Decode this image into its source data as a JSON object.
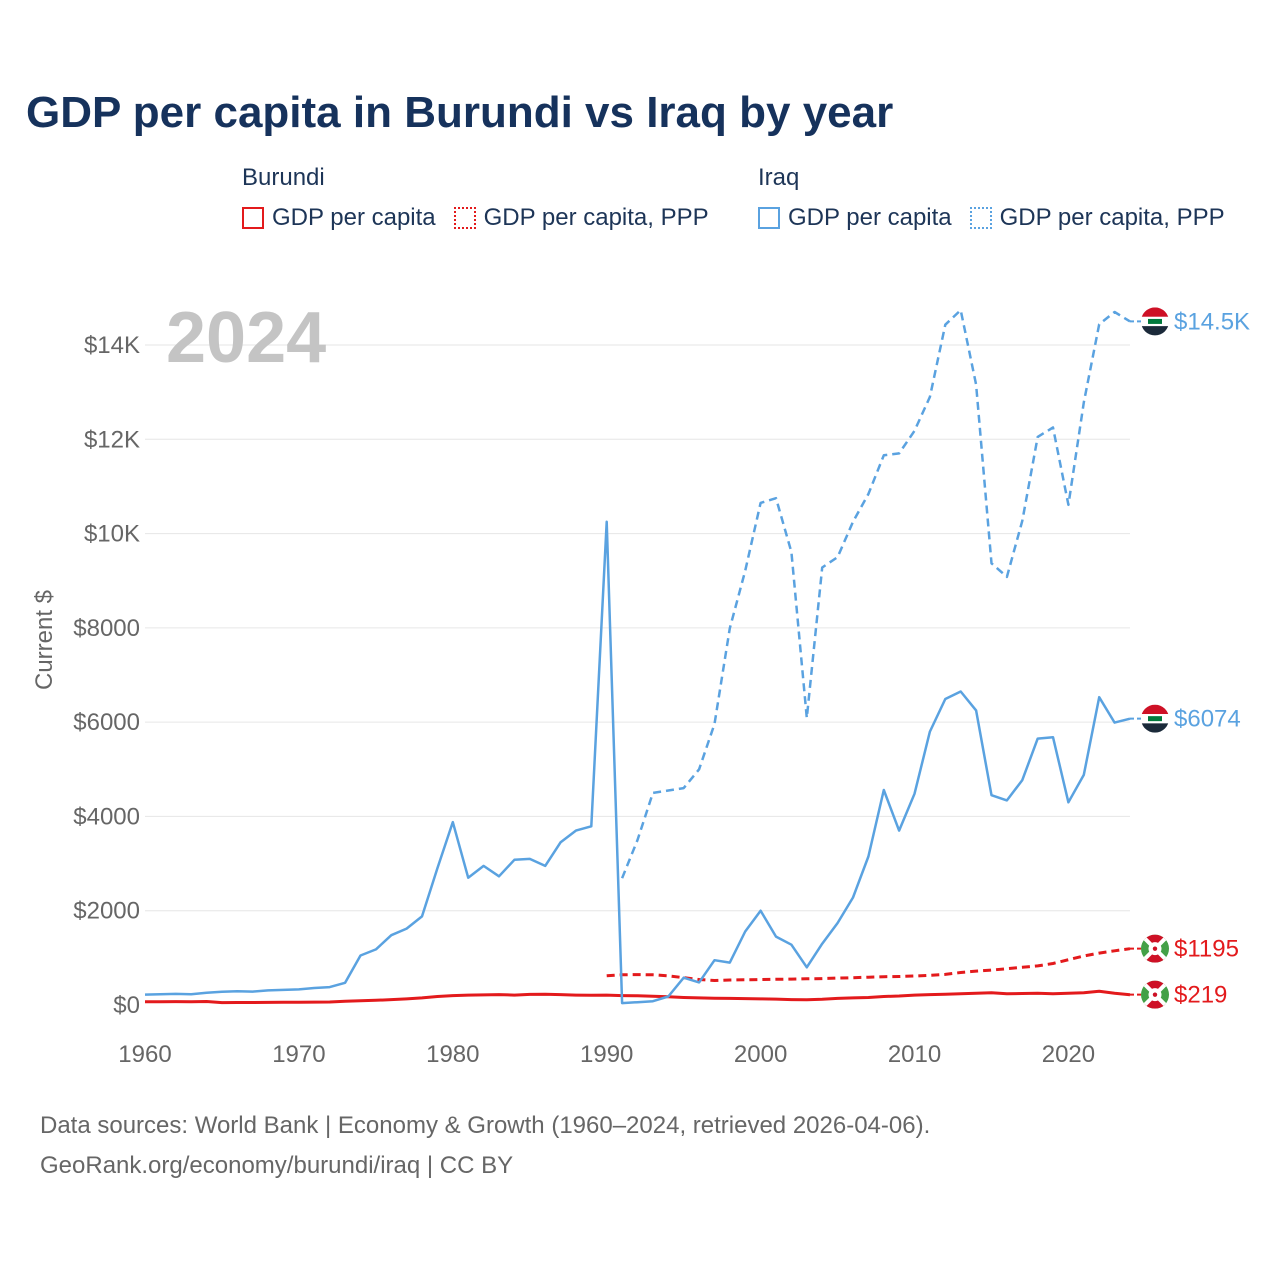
{
  "title": "GDP per capita in Burundi vs Iraq by year",
  "legend": {
    "groups": [
      {
        "name": "Burundi",
        "color": "#e31a1c",
        "items": [
          {
            "label": "GDP per capita",
            "style": "solid"
          },
          {
            "label": "GDP per capita, PPP",
            "style": "dotted"
          }
        ]
      },
      {
        "name": "Iraq",
        "color": "#5aa2e0",
        "items": [
          {
            "label": "GDP per capita",
            "style": "solid"
          },
          {
            "label": "GDP per capita, PPP",
            "style": "dotted"
          }
        ]
      }
    ]
  },
  "year_label": "2024",
  "end_labels": [
    {
      "text": "$14.5K",
      "series": "Iraq GDP per capita, PPP"
    },
    {
      "text": "$6074",
      "series": "Iraq GDP per capita"
    },
    {
      "text": "$1195",
      "series": "Burundi GDP per capita, PPP"
    },
    {
      "text": "$219",
      "series": "Burundi GDP per capita"
    }
  ],
  "chart_data": {
    "type": "line",
    "title": "GDP per capita in Burundi vs Iraq by year",
    "xlabel": "",
    "ylabel": "Current $",
    "xlim": [
      1960,
      2024
    ],
    "ylim": [
      0,
      14000
    ],
    "xticks": [
      1960,
      1970,
      1980,
      1990,
      2000,
      2010,
      2020
    ],
    "yticks": [
      0,
      2000,
      4000,
      6000,
      8000,
      10000,
      12000,
      14000
    ],
    "ytick_labels": [
      "$0",
      "$2000",
      "$4000",
      "$6000",
      "$8000",
      "$10K",
      "$12K",
      "$14K"
    ],
    "grid": true,
    "series": [
      {
        "name": "Burundi GDP per capita",
        "country": "Burundi",
        "color": "#e31a1c",
        "dash": "solid",
        "x": [
          1960,
          1961,
          1962,
          1963,
          1964,
          1965,
          1966,
          1967,
          1968,
          1969,
          1970,
          1971,
          1972,
          1973,
          1974,
          1975,
          1976,
          1977,
          1978,
          1979,
          1980,
          1981,
          1982,
          1983,
          1984,
          1985,
          1986,
          1987,
          1988,
          1989,
          1990,
          1991,
          1992,
          1993,
          1994,
          1995,
          1996,
          1997,
          1998,
          1999,
          2000,
          2001,
          2002,
          2003,
          2004,
          2005,
          2006,
          2007,
          2008,
          2009,
          2010,
          2011,
          2012,
          2013,
          2014,
          2015,
          2016,
          2017,
          2018,
          2019,
          2020,
          2021,
          2022,
          2023,
          2024
        ],
        "values": [
          70,
          71,
          72,
          70,
          75,
          50,
          52,
          54,
          56,
          58,
          60,
          62,
          64,
          80,
          90,
          100,
          115,
          130,
          150,
          180,
          200,
          210,
          215,
          220,
          210,
          225,
          230,
          220,
          210,
          205,
          210,
          200,
          195,
          185,
          175,
          160,
          150,
          145,
          140,
          135,
          130,
          125,
          115,
          110,
          120,
          140,
          150,
          160,
          180,
          190,
          210,
          220,
          230,
          240,
          250,
          260,
          240,
          245,
          250,
          240,
          250,
          260,
          290,
          250,
          219
        ]
      },
      {
        "name": "Burundi GDP per capita, PPP",
        "country": "Burundi",
        "color": "#e31a1c",
        "dash": "dashed",
        "x": [
          1990,
          1991,
          1992,
          1993,
          1994,
          1995,
          1996,
          1997,
          1998,
          1999,
          2000,
          2001,
          2002,
          2003,
          2004,
          2005,
          2006,
          2007,
          2008,
          2009,
          2010,
          2011,
          2012,
          2013,
          2014,
          2015,
          2016,
          2017,
          2018,
          2019,
          2020,
          2021,
          2022,
          2023,
          2024
        ],
        "values": [
          620,
          640,
          645,
          640,
          620,
          580,
          540,
          520,
          530,
          535,
          540,
          545,
          550,
          555,
          560,
          570,
          580,
          590,
          600,
          605,
          615,
          630,
          650,
          690,
          720,
          740,
          770,
          800,
          830,
          880,
          960,
          1040,
          1100,
          1150,
          1195
        ]
      },
      {
        "name": "Iraq GDP per capita",
        "country": "Iraq",
        "color": "#5aa2e0",
        "dash": "solid",
        "x": [
          1960,
          1961,
          1962,
          1963,
          1964,
          1965,
          1966,
          1967,
          1968,
          1969,
          1970,
          1971,
          1972,
          1973,
          1974,
          1975,
          1976,
          1977,
          1978,
          1979,
          1980,
          1981,
          1982,
          1983,
          1984,
          1985,
          1986,
          1987,
          1988,
          1989,
          1990,
          1991,
          1992,
          1993,
          1994,
          1995,
          1996,
          1997,
          1998,
          1999,
          2000,
          2001,
          2002,
          2003,
          2004,
          2005,
          2006,
          2007,
          2008,
          2009,
          2010,
          2011,
          2012,
          2013,
          2014,
          2015,
          2016,
          2017,
          2018,
          2019,
          2020,
          2021,
          2022,
          2023,
          2024
        ],
        "values": [
          220,
          230,
          235,
          230,
          260,
          280,
          290,
          285,
          310,
          320,
          330,
          360,
          380,
          470,
          1050,
          1180,
          1480,
          1620,
          1880,
          2900,
          3880,
          2700,
          2950,
          2730,
          3080,
          3100,
          2950,
          3450,
          3700,
          3790,
          10250,
          40,
          60,
          80,
          180,
          580,
          480,
          950,
          900,
          1560,
          2000,
          1450,
          1280,
          800,
          1300,
          1740,
          2280,
          3150,
          4560,
          3700,
          4480,
          5800,
          6490,
          6650,
          6250,
          4450,
          4340,
          4770,
          5650,
          5680,
          4300,
          4880,
          6530,
          5990,
          6074
        ]
      },
      {
        "name": "Iraq GDP per capita, PPP",
        "country": "Iraq",
        "color": "#5aa2e0",
        "dash": "dashed",
        "x": [
          1991,
          1992,
          1993,
          1994,
          1995,
          1996,
          1997,
          1998,
          1999,
          2000,
          2001,
          2002,
          2003,
          2004,
          2005,
          2006,
          2007,
          2008,
          2009,
          2010,
          2011,
          2012,
          2013,
          2014,
          2015,
          2016,
          2017,
          2018,
          2019,
          2020,
          2021,
          2022,
          2023,
          2024
        ],
        "values": [
          2690,
          3500,
          4500,
          4550,
          4600,
          5000,
          5960,
          7990,
          9210,
          10650,
          10750,
          9610,
          6090,
          9280,
          9500,
          10250,
          10840,
          11660,
          11700,
          12180,
          12900,
          14430,
          14740,
          13160,
          9370,
          9080,
          10270,
          12050,
          12250,
          10610,
          12780,
          14440,
          14700,
          14500
        ]
      }
    ]
  },
  "footer": {
    "line1": "Data sources: World Bank | Economy & Growth (1960–2024, retrieved 2026-04-06).",
    "line2": "GeoRank.org/economy/burundi/iraq | CC BY"
  }
}
